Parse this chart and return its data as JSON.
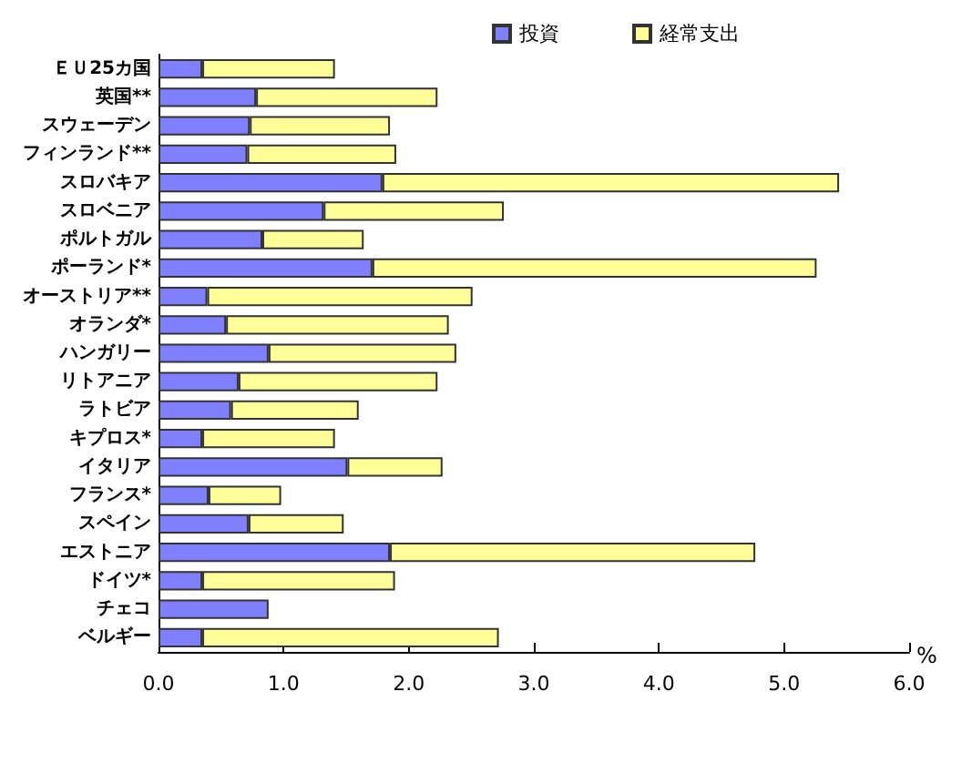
{
  "chart_data": {
    "type": "bar",
    "orientation": "horizontal",
    "stacked": true,
    "xlabel": "%",
    "categories": [
      "ＥＵ25カ国",
      "英国**",
      "スウェーデン",
      "フィンランド**",
      "スロバキア",
      "スロベニア",
      "ポルトガル",
      "ポーランド*",
      "オーストリア**",
      "オランダ*",
      "ハンガリー",
      "リトアニア",
      "ラトビア",
      "キプロス*",
      "イタリア",
      "フランス*",
      "スペイン",
      "エストニア",
      "ドイツ*",
      "チェコ",
      "ベルギー"
    ],
    "series": [
      {
        "name": "投資",
        "color": "#8080ff",
        "values": [
          0.35,
          0.78,
          0.73,
          0.71,
          1.79,
          1.32,
          0.83,
          1.71,
          0.39,
          0.54,
          0.88,
          0.64,
          0.58,
          0.35,
          1.51,
          0.4,
          0.72,
          1.85,
          0.35,
          0.88,
          0.35
        ]
      },
      {
        "name": "経常支出",
        "color": "#ffff99",
        "values": [
          1.06,
          1.45,
          1.12,
          1.19,
          3.65,
          1.44,
          0.81,
          3.55,
          2.12,
          1.78,
          1.5,
          1.59,
          1.02,
          1.06,
          0.76,
          0.58,
          0.76,
          2.92,
          1.54,
          null,
          2.37
        ]
      }
    ],
    "xlim": [
      0,
      6
    ],
    "xticks": [
      {
        "value": 0,
        "label": "0.0"
      },
      {
        "value": 1,
        "label": "1.0"
      },
      {
        "value": 2,
        "label": "2.0"
      },
      {
        "value": 3,
        "label": "3.0"
      },
      {
        "value": 4,
        "label": "4.0"
      },
      {
        "value": 5,
        "label": "5.0"
      },
      {
        "value": 6,
        "label": "6.0"
      }
    ],
    "grid": false,
    "legend": "top"
  }
}
